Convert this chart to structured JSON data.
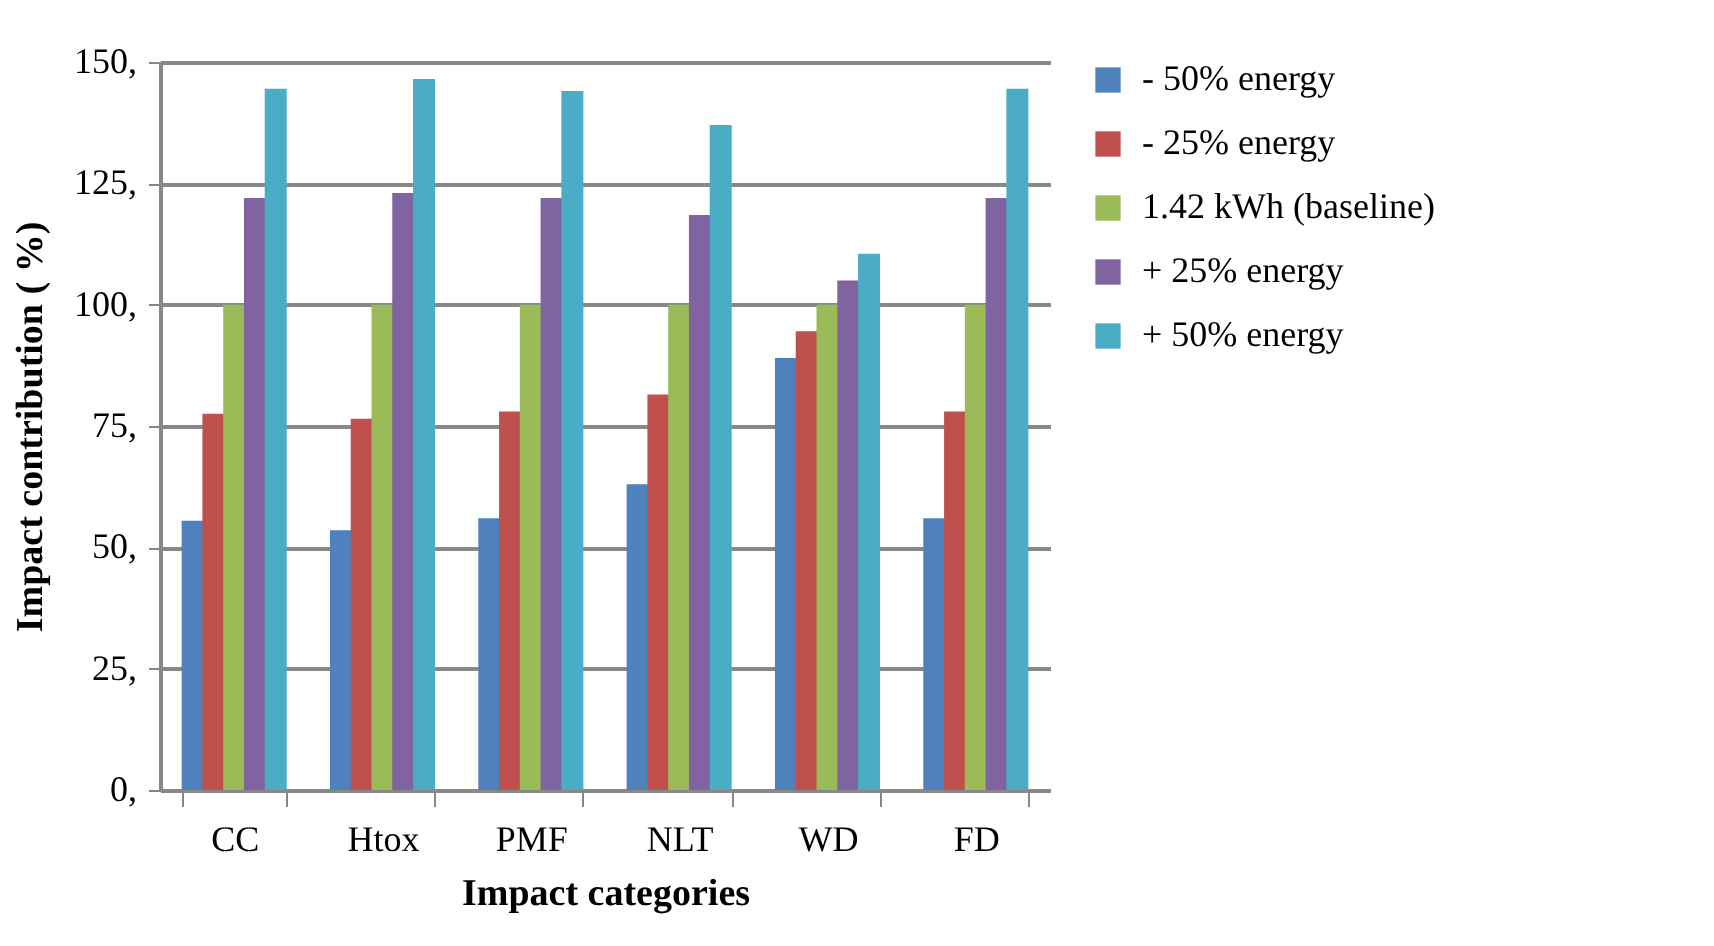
{
  "chart_data": {
    "type": "bar",
    "xlabel": "Impact categories",
    "ylabel": "Impact contribution ( %)",
    "categories": [
      "CC",
      "Htox",
      "PMF",
      "NLT",
      "WD",
      "FD"
    ],
    "series": [
      {
        "name": "- 50% energy",
        "color": "#4f81bd",
        "values": [
          55.5,
          53.5,
          56,
          63,
          89,
          56
        ]
      },
      {
        "name": "- 25% energy",
        "color": "#c0504d",
        "values": [
          77.5,
          76.5,
          78,
          81.5,
          94.5,
          78
        ]
      },
      {
        "name": "1.42 kWh (baseline)",
        "color": "#9bbb59",
        "values": [
          100,
          100,
          100,
          100,
          100,
          100
        ]
      },
      {
        "name": "+ 25% energy",
        "color": "#8064a2",
        "values": [
          122,
          123,
          122,
          118.5,
          105,
          122
        ]
      },
      {
        "name": "+ 50% energy",
        "color": "#4bacc6",
        "values": [
          144.5,
          146.5,
          144,
          137,
          110.5,
          144.5
        ]
      }
    ],
    "ylim": [
      0,
      150
    ],
    "yticks": [
      {
        "value": 0,
        "label": "0,"
      },
      {
        "value": 25,
        "label": "25,"
      },
      {
        "value": 50,
        "label": "50,"
      },
      {
        "value": 75,
        "label": "75,"
      },
      {
        "value": 100,
        "label": "100,"
      },
      {
        "value": 125,
        "label": "125,"
      },
      {
        "value": 150,
        "label": "150,"
      }
    ],
    "grid": "y",
    "legend": "right"
  }
}
